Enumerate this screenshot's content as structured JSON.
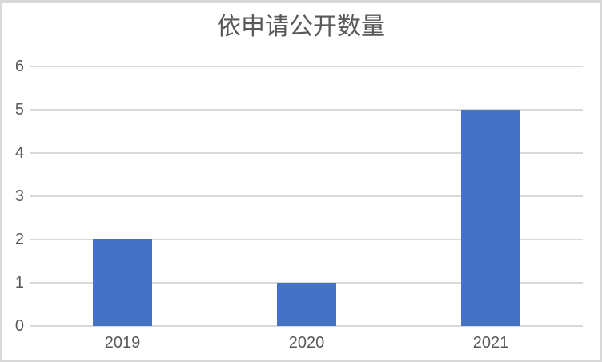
{
  "chart_data": {
    "type": "bar",
    "title": "依申请公开数量",
    "categories": [
      "2019",
      "2020",
      "2021"
    ],
    "values": [
      2,
      1,
      5
    ],
    "xlabel": "",
    "ylabel": "",
    "ylim": [
      0,
      6
    ],
    "yticks": [
      0,
      1,
      2,
      3,
      4,
      5,
      6
    ],
    "grid": true,
    "legend": false,
    "bar_color": "#4472c4",
    "gridline_color": "#d9d9d9",
    "axis_text_color": "#595959",
    "title_color": "#595959",
    "frame_border_color": "#d9d9d9",
    "background_color": "#ffffff"
  }
}
